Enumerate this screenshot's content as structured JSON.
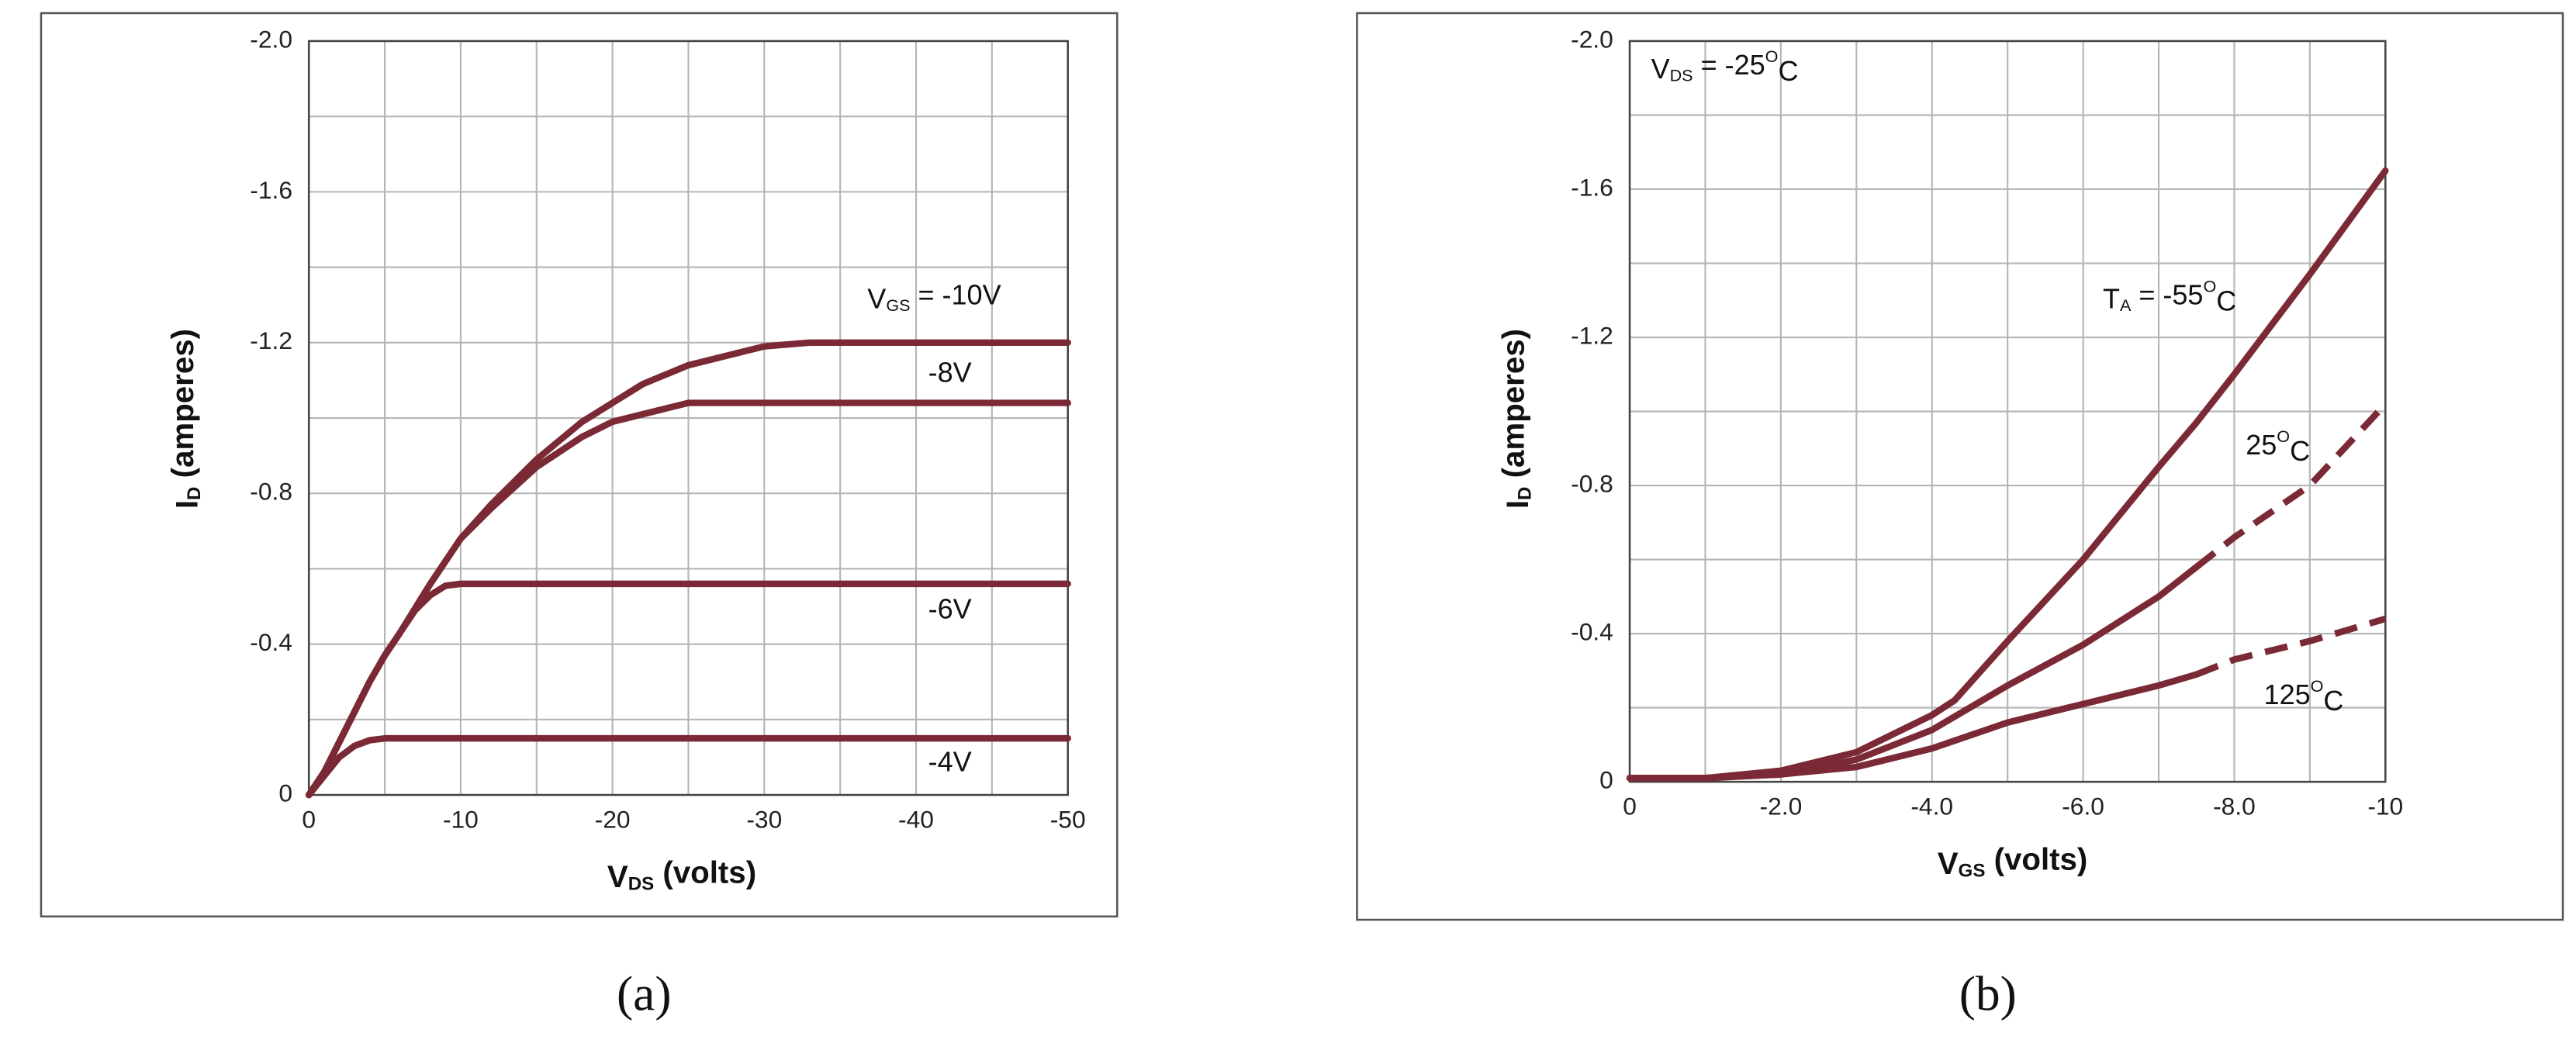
{
  "chart_data": [
    {
      "type": "line",
      "caption": "(a)",
      "xlabel": [
        {
          "text": "V"
        },
        {
          "sub": "DS"
        },
        {
          "text": " (volts)"
        }
      ],
      "ylabel": [
        {
          "text": "I"
        },
        {
          "sub": "D"
        },
        {
          "text": " (amperes)"
        }
      ],
      "xlim": [
        0,
        -50
      ],
      "xticks": [
        0,
        -10,
        -20,
        -30,
        -40,
        -50
      ],
      "ylim": [
        0,
        -2.0
      ],
      "yticks": [
        0,
        -0.4,
        -0.8,
        -1.2,
        -1.6,
        {
          "value": -2.0,
          "label": "-2.0"
        }
      ],
      "minor_xticks": [
        -5,
        -15,
        -25,
        -35,
        -45
      ],
      "minor_yticks": [
        -0.2,
        -0.6,
        -1.0,
        -1.4,
        -1.8
      ],
      "grid": true,
      "series": [
        {
          "label": [
            {
              "text": "V"
            },
            {
              "sub": "GS"
            },
            {
              "text": " = -10V"
            }
          ],
          "color": "#7b2a35",
          "style": "solid",
          "x": [
            0,
            -1,
            -2,
            -3,
            -4,
            -5,
            -6,
            -8,
            -10,
            -12,
            -15,
            -18,
            -20,
            -22,
            -25,
            -28,
            -30,
            -33,
            -35,
            -40,
            -45,
            -50
          ],
          "values": [
            0,
            -0.06,
            -0.14,
            -0.22,
            -0.3,
            -0.37,
            -0.43,
            -0.56,
            -0.68,
            -0.77,
            -0.89,
            -0.99,
            -1.04,
            -1.09,
            -1.14,
            -1.17,
            -1.19,
            -1.2,
            -1.2,
            -1.2,
            -1.2,
            -1.2
          ]
        },
        {
          "label": "-8V",
          "color": "#7b2a35",
          "style": "solid",
          "x": [
            0,
            -1,
            -2,
            -3,
            -4,
            -5,
            -6,
            -8,
            -10,
            -12,
            -15,
            -18,
            -20,
            -22,
            -25,
            -30,
            -35,
            -40,
            -45,
            -50
          ],
          "values": [
            0,
            -0.06,
            -0.14,
            -0.22,
            -0.3,
            -0.37,
            -0.43,
            -0.56,
            -0.68,
            -0.76,
            -0.87,
            -0.95,
            -0.99,
            -1.01,
            -1.04,
            -1.04,
            -1.04,
            -1.04,
            -1.04,
            -1.04
          ]
        },
        {
          "label": "-6V",
          "color": "#7b2a35",
          "style": "solid",
          "x": [
            0,
            -1,
            -2,
            -3,
            -4,
            -5,
            -6,
            -7,
            -8,
            -9,
            -10,
            -15,
            -20,
            -30,
            -40,
            -50
          ],
          "values": [
            0,
            -0.06,
            -0.14,
            -0.22,
            -0.3,
            -0.37,
            -0.43,
            -0.49,
            -0.53,
            -0.555,
            -0.56,
            -0.56,
            -0.56,
            -0.56,
            -0.56,
            -0.56
          ]
        },
        {
          "label": "-4V",
          "color": "#7b2a35",
          "style": "solid",
          "x": [
            0,
            -1,
            -2,
            -3,
            -4,
            -5,
            -10,
            -20,
            -30,
            -40,
            -50
          ],
          "values": [
            0,
            -0.05,
            -0.1,
            -0.13,
            -0.145,
            -0.15,
            -0.15,
            -0.15,
            -0.15,
            -0.15,
            -0.15
          ]
        }
      ]
    },
    {
      "type": "line",
      "caption": "(b)",
      "annotation": [
        {
          "text": "V"
        },
        {
          "sub": "DS"
        },
        {
          "text": " = -25"
        },
        {
          "sup": "O"
        },
        {
          "text": "C"
        }
      ],
      "xlabel": [
        {
          "text": "V"
        },
        {
          "sub": "GS"
        },
        {
          "text": " (volts)"
        }
      ],
      "ylabel": [
        {
          "text": "I"
        },
        {
          "sub": "D"
        },
        {
          "text": " (amperes)"
        }
      ],
      "xlim": [
        0,
        -10
      ],
      "xticks": [
        0,
        {
          "value": -2,
          "label": "-2.0"
        },
        {
          "value": -4,
          "label": "-4.0"
        },
        {
          "value": -6,
          "label": "-6.0"
        },
        {
          "value": -8,
          "label": "-8.0"
        },
        -10
      ],
      "ylim": [
        0,
        -2.0
      ],
      "yticks": [
        0,
        -0.4,
        -0.8,
        -1.2,
        -1.6,
        {
          "value": -2.0,
          "label": "-2.0"
        }
      ],
      "minor_xticks": [
        -1,
        -3,
        -5,
        -7,
        -9
      ],
      "minor_yticks": [
        -0.2,
        -0.6,
        -1.0,
        -1.4,
        -1.8
      ],
      "grid": true,
      "series": [
        {
          "label": [
            {
              "text": "T"
            },
            {
              "sub": "A"
            },
            {
              "text": " = -55"
            },
            {
              "sup": "O"
            },
            {
              "text": "C"
            }
          ],
          "color": "#7b2a35",
          "style": "solid",
          "x": [
            0,
            -1,
            -2,
            -3,
            -4,
            -4.3,
            -5,
            -6,
            -7,
            -7.5,
            -8,
            -9,
            -10
          ],
          "values": [
            -0.01,
            -0.01,
            -0.03,
            -0.08,
            -0.18,
            -0.22,
            -0.38,
            -0.6,
            -0.85,
            -0.97,
            -1.1,
            -1.37,
            -1.65
          ]
        },
        {
          "label": [
            {
              "text": "25"
            },
            {
              "sup": "O"
            },
            {
              "text": "C"
            }
          ],
          "color": "#7b2a35",
          "style": "solid",
          "x": [
            0,
            -1,
            -2,
            -3,
            -4,
            -5,
            -6,
            -7,
            -7.5
          ],
          "values": [
            -0.01,
            -0.01,
            -0.02,
            -0.06,
            -0.14,
            -0.26,
            -0.37,
            -0.5,
            -0.58
          ]
        },
        {
          "color": "#7b2a35",
          "style": "dashed",
          "x": [
            -7.5,
            -8,
            -9,
            -10
          ],
          "values": [
            -0.58,
            -0.66,
            -0.8,
            -1.02
          ]
        },
        {
          "label": [
            {
              "text": "125"
            },
            {
              "sup": "O"
            },
            {
              "text": "C"
            }
          ],
          "color": "#7b2a35",
          "style": "solid",
          "x": [
            0,
            -1,
            -2,
            -3,
            -4,
            -5,
            -6,
            -7,
            -7.5
          ],
          "values": [
            -0.01,
            -0.01,
            -0.02,
            -0.04,
            -0.09,
            -0.16,
            -0.21,
            -0.26,
            -0.29
          ]
        },
        {
          "color": "#7b2a35",
          "style": "dashed",
          "x": [
            -7.5,
            -8,
            -9,
            -10
          ],
          "values": [
            -0.29,
            -0.33,
            -0.38,
            -0.44
          ]
        }
      ]
    }
  ]
}
